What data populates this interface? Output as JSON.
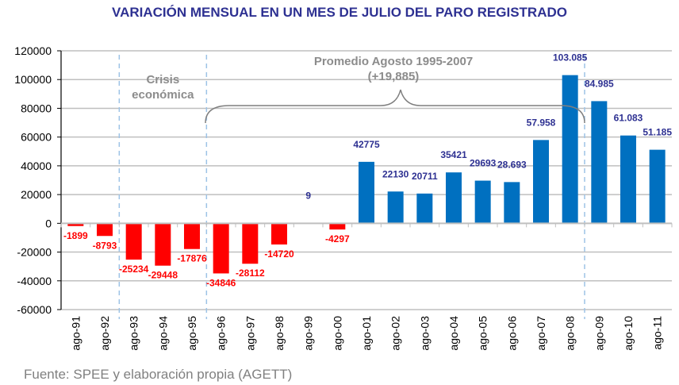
{
  "chart_data": {
    "type": "bar",
    "title": "VARIACIÓN MENSUAL EN UN MES DE JULIO DEL PARO REGISTRADO",
    "xlabel": "",
    "ylabel": "",
    "ylim": [
      -60000,
      120000
    ],
    "yticks": [
      120000,
      100000,
      80000,
      60000,
      40000,
      20000,
      0,
      -20000,
      -40000,
      -60000
    ],
    "ytick_labels": [
      "120000",
      "100000",
      "80000",
      "60000",
      "40000",
      "20000",
      "0",
      "-20000",
      "-40000",
      "-60000"
    ],
    "grid": true,
    "categories": [
      "ago-91",
      "ago-92",
      "ago-93",
      "ago-94",
      "ago-95",
      "ago-96",
      "ago-97",
      "ago-98",
      "ago-99",
      "ago-00",
      "ago-01",
      "ago-02",
      "ago-03",
      "ago-04",
      "ago-05",
      "ago-06",
      "ago-07",
      "ago-08",
      "ago-09",
      "ago-10",
      "ago-11"
    ],
    "values": [
      -1899,
      -8793,
      -25234,
      -29448,
      -17876,
      -34846,
      -28112,
      -14720,
      9,
      -4297,
      42775,
      22130,
      20711,
      35421,
      29693,
      28693,
      57958,
      103085,
      84985,
      61083,
      51185
    ],
    "data_labels": [
      "-1899",
      "-8793",
      "-25234",
      "-29448",
      "-17876",
      "-34846",
      "-28112",
      "-14720",
      "9",
      "-4297",
      "42775",
      "22130",
      "20711",
      "35421",
      "29693",
      "28.693",
      "57.958",
      "103.085",
      "84.985",
      "61.083",
      "51.185"
    ],
    "colors": {
      "negative": "#FF0000",
      "positive": "#0070C0",
      "positive_label": "#2E3192",
      "negative_label": "#FF0000",
      "annotation": "#8C8C8C",
      "divider": "#9DC3E6",
      "grid": "#BFBFBF"
    },
    "annotations": [
      {
        "text_lines": [
          "Crisis",
          "económica"
        ],
        "span": [
          "ago-92",
          "ago-95"
        ]
      },
      {
        "text_lines": [
          "Promedio Agosto  1995-2007",
          "(+19,885)"
        ],
        "span": [
          "ago-96",
          "ago-08"
        ]
      }
    ],
    "dividers_after": [
      "ago-92",
      "ago-95",
      "ago-08"
    ]
  },
  "source": "Fuente: SPEE y elaboración propia (AGETT)"
}
